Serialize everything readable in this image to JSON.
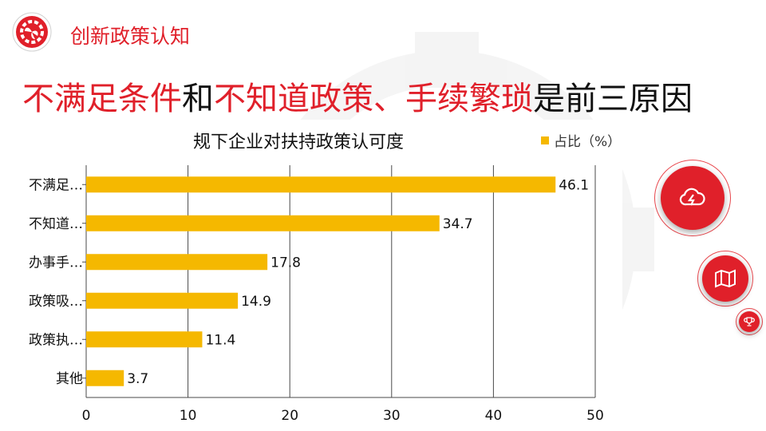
{
  "header": {
    "section_title": "创新政策认知"
  },
  "headline": {
    "parts": [
      {
        "text": "不满足条件",
        "color": "#e0202a"
      },
      {
        "text": "和",
        "color": "#111111"
      },
      {
        "text": "不知道政策、手续繁琐",
        "color": "#e0202a"
      },
      {
        "text": "是前三原因",
        "color": "#111111"
      }
    ]
  },
  "icons": {
    "logo": "gear-logo-icon",
    "btn1": "cloud-lightning-icon",
    "btn2": "map-icon",
    "btn3": "trophy-icon"
  },
  "colors": {
    "accent": "#e0202a",
    "bar": "#f5b800"
  },
  "chart_data": {
    "type": "bar",
    "orientation": "horizontal",
    "title": "规下企业对扶持政策认可度",
    "categories": [
      "不满足…",
      "不知道…",
      "办事手…",
      "政策吸…",
      "政策执…",
      "其他"
    ],
    "series": [
      {
        "name": "占比（%）",
        "values": [
          46.1,
          34.7,
          17.8,
          14.9,
          11.4,
          3.7
        ]
      }
    ],
    "data_labels": [
      "46.1",
      "34.7",
      "17.8",
      "14.9",
      "11.4",
      "3.7"
    ],
    "xlim": [
      0,
      50
    ],
    "xticks": [
      0,
      10,
      20,
      30,
      40,
      50
    ],
    "grid": true,
    "legend_position": "top-right"
  }
}
